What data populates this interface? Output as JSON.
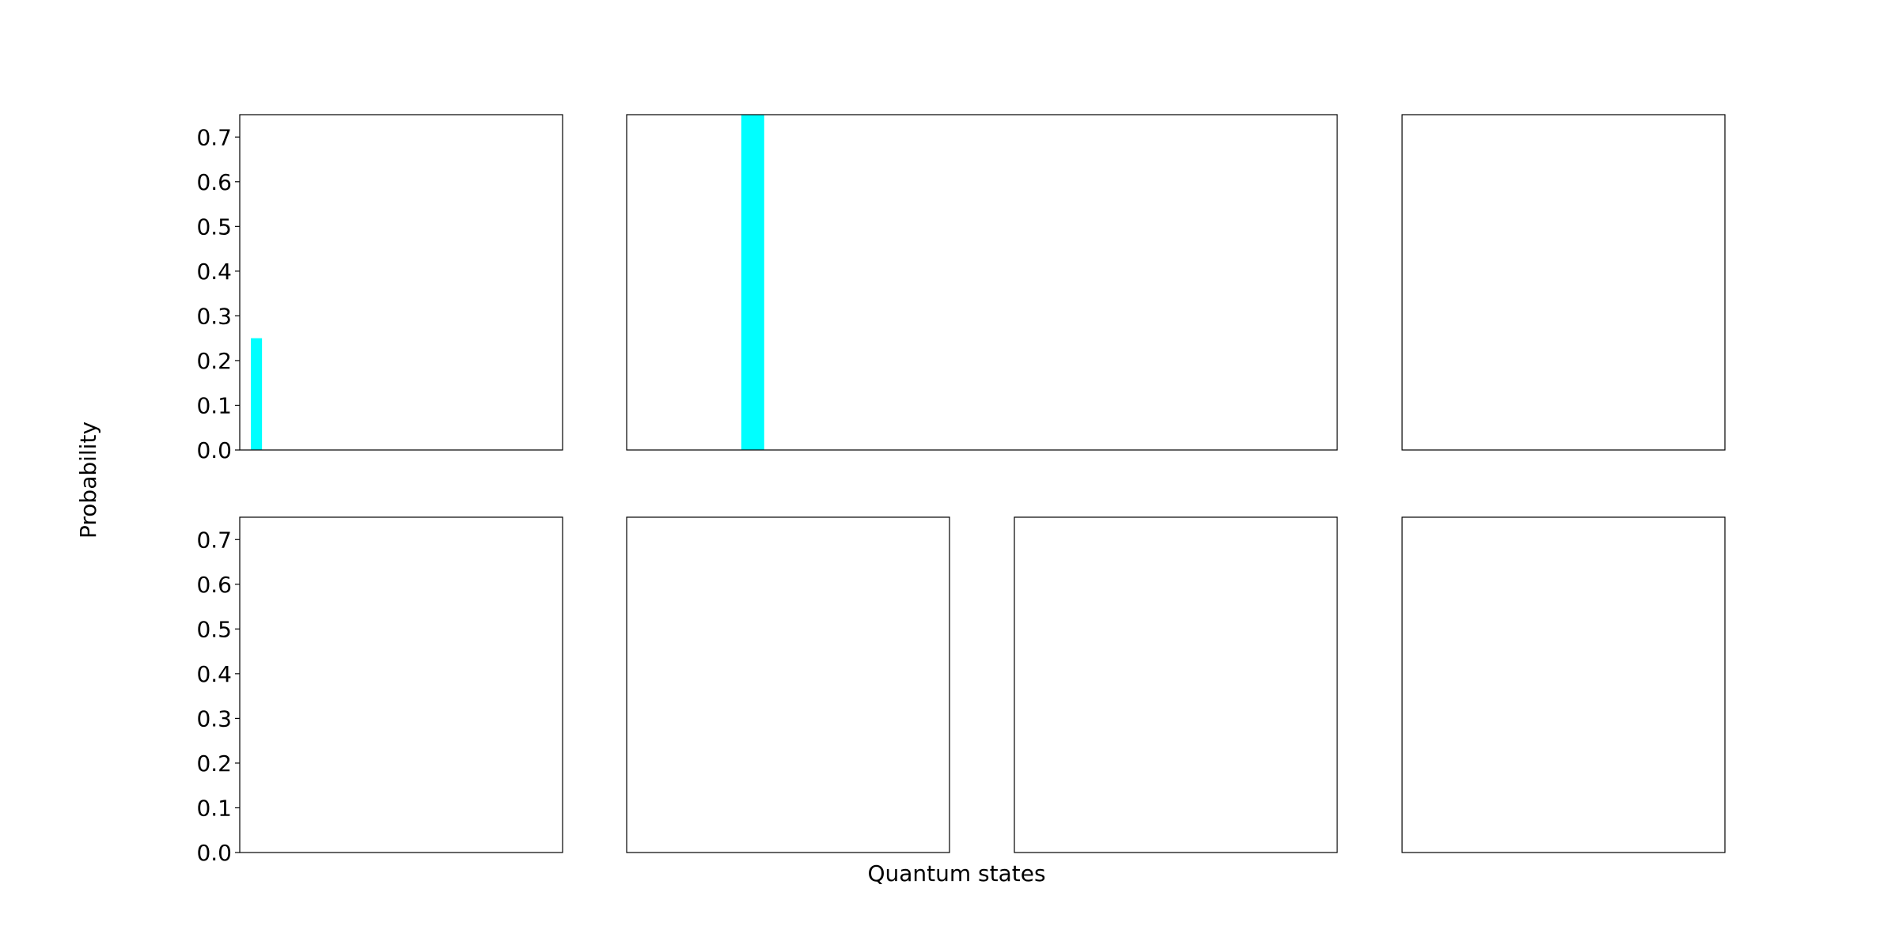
{
  "figure": {
    "ylabel": "Probability",
    "xlabel": "Quantum states",
    "bar_color": "#00ffff"
  },
  "chart_data": [
    {
      "type": "bar",
      "ylim": [
        0,
        0.75
      ],
      "yticks": [
        "0.0",
        "0.1",
        "0.2",
        "0.3",
        "0.4",
        "0.5",
        "0.6",
        "0.7"
      ],
      "show_yticks": true,
      "xlim": [
        0,
        29
      ],
      "bars": [
        {
          "x": 1,
          "width": 1,
          "value": 0.25
        }
      ]
    },
    {
      "type": "bar",
      "ylim": [
        0,
        0.75
      ],
      "yticks": [],
      "show_yticks": false,
      "xlim": [
        0,
        31
      ],
      "bars": [
        {
          "x": 5,
          "width": 1,
          "value": 0.75
        }
      ]
    },
    {
      "type": "bar",
      "ylim": [
        0,
        0.75
      ],
      "yticks": [],
      "show_yticks": false,
      "xlim": [
        0,
        29
      ],
      "bars": []
    },
    {
      "type": "bar",
      "ylim": [
        0,
        0.75
      ],
      "yticks": [
        "0.0",
        "0.1",
        "0.2",
        "0.3",
        "0.4",
        "0.5",
        "0.6",
        "0.7"
      ],
      "show_yticks": true,
      "xlim": [
        0,
        29
      ],
      "bars": []
    },
    {
      "type": "bar",
      "ylim": [
        0,
        0.75
      ],
      "yticks": [],
      "show_yticks": false,
      "xlim": [
        0,
        29
      ],
      "bars": []
    },
    {
      "type": "bar",
      "ylim": [
        0,
        0.75
      ],
      "yticks": [],
      "show_yticks": false,
      "xlim": [
        0,
        29
      ],
      "bars": []
    },
    {
      "type": "bar",
      "ylim": [
        0,
        0.75
      ],
      "yticks": [],
      "show_yticks": false,
      "xlim": [
        0,
        29
      ],
      "bars": []
    }
  ]
}
